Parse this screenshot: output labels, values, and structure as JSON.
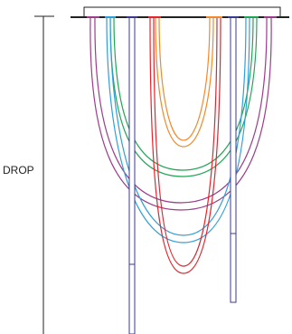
{
  "drop_label": "DROP",
  "colors": {
    "line": "#222222",
    "orange": "#f08a2c",
    "green": "#23a455",
    "blue": "#2f9fd8",
    "red": "#e0262e",
    "purple": "#9a3d8a",
    "pole": "#3a3a8c"
  }
}
